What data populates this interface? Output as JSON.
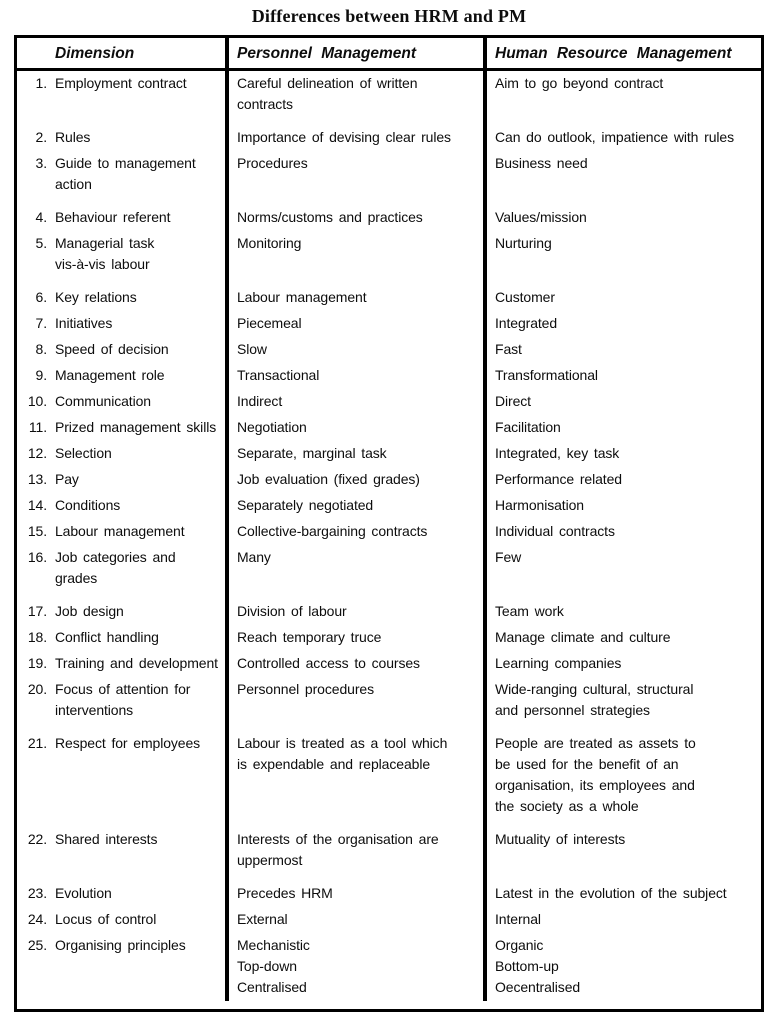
{
  "title": "Differences between HRM and PM",
  "table": {
    "headers": [
      "Dimension",
      "Personnel Management",
      "Human Resource Management"
    ],
    "rows": [
      {
        "num": "1.",
        "dimension": [
          "Employment contract"
        ],
        "pm": [
          "Careful delineation of written",
          "contracts"
        ],
        "hrm": [
          "Aim to go beyond contract"
        ]
      },
      {
        "num": "2.",
        "dimension": [
          "Rules"
        ],
        "pm": [
          "Importance of devising clear rules"
        ],
        "hrm": [
          "Can do outlook, impatience with rules"
        ]
      },
      {
        "num": "3.",
        "dimension": [
          "Guide to management",
          "action"
        ],
        "pm": [
          "Procedures"
        ],
        "hrm": [
          "Business need"
        ]
      },
      {
        "num": "4.",
        "dimension": [
          "Behaviour referent"
        ],
        "pm": [
          "Norms/customs and practices"
        ],
        "hrm": [
          "Values/mission"
        ]
      },
      {
        "num": "5.",
        "dimension": [
          "Managerial task",
          "vis-à-vis labour"
        ],
        "pm": [
          "Monitoring"
        ],
        "hrm": [
          "Nurturing"
        ]
      },
      {
        "num": "6.",
        "dimension": [
          "Key relations"
        ],
        "pm": [
          "Labour management"
        ],
        "hrm": [
          "Customer"
        ]
      },
      {
        "num": "7.",
        "dimension": [
          "Initiatives"
        ],
        "pm": [
          "Piecemeal"
        ],
        "hrm": [
          "Integrated"
        ]
      },
      {
        "num": "8.",
        "dimension": [
          "Speed of decision"
        ],
        "pm": [
          "Slow"
        ],
        "hrm": [
          "Fast"
        ]
      },
      {
        "num": "9.",
        "dimension": [
          "Management role"
        ],
        "pm": [
          "Transactional"
        ],
        "hrm": [
          "Transformational"
        ]
      },
      {
        "num": "10.",
        "dimension": [
          "Communication"
        ],
        "pm": [
          "Indirect"
        ],
        "hrm": [
          "Direct"
        ]
      },
      {
        "num": "11.",
        "dimension": [
          "Prized management skills"
        ],
        "pm": [
          "Negotiation"
        ],
        "hrm": [
          "Facilitation"
        ]
      },
      {
        "num": "12.",
        "dimension": [
          "Selection"
        ],
        "pm": [
          "Separate, marginal task"
        ],
        "hrm": [
          "Integrated, key task"
        ]
      },
      {
        "num": "13.",
        "dimension": [
          "Pay"
        ],
        "pm": [
          "Job evaluation (fixed grades)"
        ],
        "hrm": [
          "Performance related"
        ]
      },
      {
        "num": "14.",
        "dimension": [
          "Conditions"
        ],
        "pm": [
          "Separately negotiated"
        ],
        "hrm": [
          "Harmonisation"
        ]
      },
      {
        "num": "15.",
        "dimension": [
          "Labour management"
        ],
        "pm": [
          "Collective-bargaining contracts"
        ],
        "hrm": [
          "Individual contracts"
        ]
      },
      {
        "num": "16.",
        "dimension": [
          "Job categories and",
          "grades"
        ],
        "pm": [
          "Many"
        ],
        "hrm": [
          "Few"
        ]
      },
      {
        "num": "17.",
        "dimension": [
          "Job design"
        ],
        "pm": [
          "Division of labour"
        ],
        "hrm": [
          "Team work"
        ]
      },
      {
        "num": "18.",
        "dimension": [
          "Conflict handling"
        ],
        "pm": [
          "Reach temporary truce"
        ],
        "hrm": [
          "Manage climate and culture"
        ]
      },
      {
        "num": "19.",
        "dimension": [
          "Training and development"
        ],
        "pm": [
          "Controlled access to courses"
        ],
        "hrm": [
          "Learning companies"
        ]
      },
      {
        "num": "20.",
        "dimension": [
          "Focus of attention for",
          "interventions"
        ],
        "pm": [
          "Personnel procedures"
        ],
        "hrm": [
          "Wide-ranging cultural, structural",
          "and personnel strategies"
        ]
      },
      {
        "num": "21.",
        "dimension": [
          "Respect for employees"
        ],
        "pm": [
          "Labour is treated as a tool which",
          "is expendable and replaceable"
        ],
        "hrm": [
          "People are treated as assets to",
          "be used for the benefit of an",
          "organisation, its employees and",
          "the society as a whole"
        ]
      },
      {
        "num": "22.",
        "dimension": [
          "Shared interests"
        ],
        "pm": [
          "Interests of the organisation are",
          "uppermost"
        ],
        "hrm": [
          "Mutuality of interests"
        ]
      },
      {
        "num": "23.",
        "dimension": [
          "Evolution"
        ],
        "pm": [
          "Precedes HRM"
        ],
        "hrm": [
          "Latest in the evolution of the subject"
        ]
      },
      {
        "num": "24.",
        "dimension": [
          "Locus of control"
        ],
        "pm": [
          "External"
        ],
        "hrm": [
          "Internal"
        ]
      },
      {
        "num": "25.",
        "dimension": [
          "Organising principles"
        ],
        "pm": [
          "Mechanistic",
          "Top-down",
          "Centralised"
        ],
        "hrm": [
          "Organic",
          "Bottom-up",
          "Oecentralised"
        ]
      }
    ]
  }
}
